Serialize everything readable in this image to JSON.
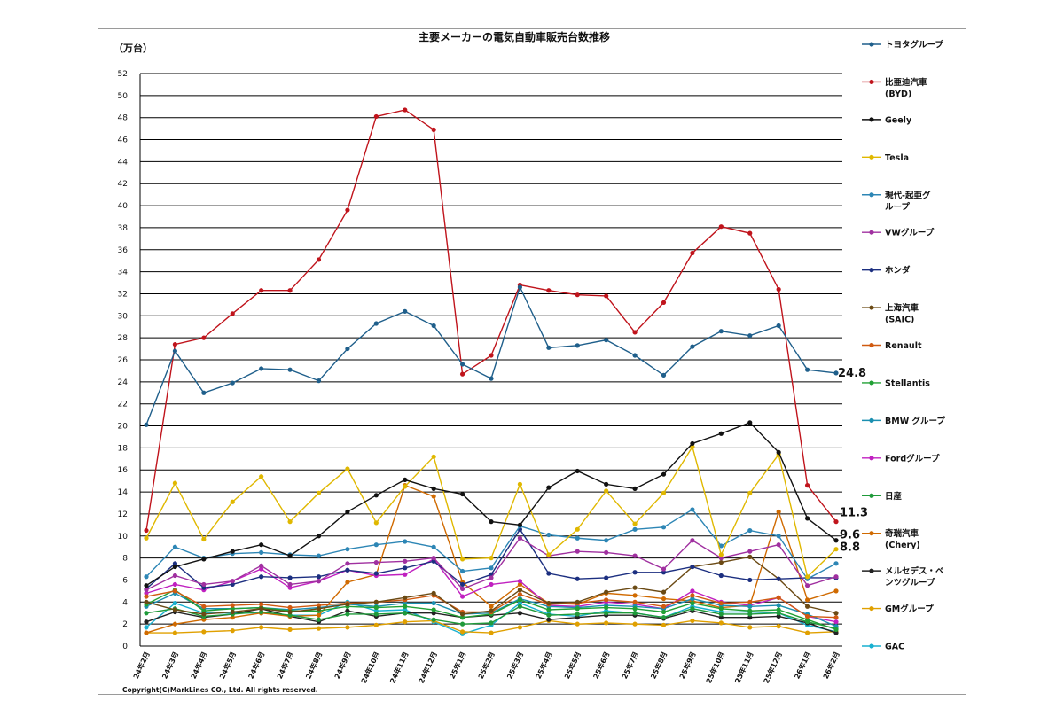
{
  "chart_data": {
    "type": "line",
    "title": "主要メーカーの電気自動車販売台数推移",
    "unit_label": "（万台）",
    "ylim": [
      0,
      52
    ],
    "ytick_step": 2,
    "grid": "horizontal",
    "legend_position": "right",
    "categories": [
      "24年2月",
      "24年3月",
      "24年4月",
      "24年5月",
      "24年6月",
      "24年7月",
      "24年8月",
      "24年9月",
      "24年10月",
      "24年11月",
      "24年12月",
      "25年1月",
      "25年2月",
      "25年3月",
      "25年4月",
      "25年5月",
      "25年6月",
      "25年7月",
      "25年8月",
      "25年9月",
      "25年10月",
      "25年11月",
      "25年12月",
      "26年1月",
      "26年2月"
    ],
    "series": [
      {
        "name": "トヨタグループ",
        "color": "#1f5f8b",
        "values": [
          20.1,
          26.8,
          23.0,
          23.9,
          25.2,
          25.1,
          24.1,
          27.0,
          29.3,
          30.4,
          29.1,
          25.6,
          24.3,
          32.6,
          27.1,
          27.3,
          27.8,
          26.4,
          24.6,
          27.2,
          28.6,
          28.2,
          29.1,
          25.1,
          24.8
        ]
      },
      {
        "name": "比亜迪汽車\n(BYD)",
        "color": "#c0141c",
        "values": [
          10.5,
          27.4,
          28.0,
          30.2,
          32.3,
          32.3,
          35.1,
          39.6,
          48.1,
          48.7,
          46.9,
          24.7,
          26.4,
          32.8,
          32.3,
          31.9,
          31.8,
          28.5,
          31.2,
          35.7,
          38.1,
          37.5,
          32.4,
          14.6,
          11.3
        ]
      },
      {
        "name": "Geely",
        "color": "#111111",
        "values": [
          5.5,
          7.2,
          7.9,
          8.6,
          9.2,
          8.2,
          10.0,
          12.2,
          13.7,
          15.1,
          14.3,
          13.8,
          11.3,
          11.0,
          14.4,
          15.9,
          14.7,
          14.3,
          15.6,
          18.4,
          19.3,
          20.3,
          17.6,
          11.6,
          9.6
        ]
      },
      {
        "name": "Tesla",
        "color": "#e0b800",
        "values": [
          9.8,
          14.8,
          9.7,
          13.1,
          15.4,
          11.3,
          13.9,
          16.1,
          11.2,
          14.5,
          17.2,
          7.9,
          8.0,
          14.7,
          8.3,
          10.6,
          14.1,
          11.1,
          13.9,
          18.1,
          8.3,
          13.9,
          17.4,
          6.3,
          8.8
        ]
      },
      {
        "name": "現代-起亜グ\nループ",
        "color": "#2d86b5",
        "values": [
          6.3,
          9.0,
          8.0,
          8.4,
          8.5,
          8.3,
          8.2,
          8.8,
          9.2,
          9.5,
          9.0,
          6.8,
          7.1,
          10.9,
          10.1,
          9.8,
          9.6,
          10.6,
          10.8,
          12.4,
          9.1,
          10.5,
          10.0,
          6.1,
          7.5
        ]
      },
      {
        "name": "VWグループ",
        "color": "#a030a0",
        "values": [
          5.1,
          6.4,
          5.6,
          5.9,
          7.3,
          5.6,
          5.9,
          7.5,
          7.6,
          7.7,
          8.0,
          5.2,
          6.2,
          9.8,
          8.2,
          8.6,
          8.5,
          8.2,
          7.0,
          9.6,
          8.0,
          8.6,
          9.2,
          5.5,
          6.3
        ]
      },
      {
        "name": "ホンダ",
        "color": "#1c2f80",
        "values": [
          5.2,
          7.5,
          5.3,
          5.6,
          6.3,
          6.2,
          6.3,
          6.9,
          6.6,
          7.1,
          7.7,
          5.6,
          6.5,
          10.6,
          6.6,
          6.1,
          6.2,
          6.7,
          6.7,
          7.2,
          6.4,
          6.0,
          6.1,
          6.2,
          6.2
        ]
      },
      {
        "name": "上海汽車\n(SAIC)",
        "color": "#6b4a14",
        "values": [
          4.0,
          3.3,
          2.9,
          3.1,
          3.4,
          3.1,
          3.4,
          3.8,
          4.0,
          4.4,
          4.8,
          2.9,
          3.2,
          5.1,
          3.9,
          4.0,
          4.9,
          5.3,
          4.9,
          7.2,
          7.6,
          8.1,
          6.1,
          3.6,
          3.0
        ]
      },
      {
        "name": "Renault",
        "color": "#d05a10",
        "values": [
          4.5,
          5.0,
          3.6,
          3.7,
          3.8,
          3.5,
          3.7,
          3.9,
          4.0,
          4.2,
          4.6,
          3.1,
          3.1,
          4.7,
          3.8,
          3.9,
          4.2,
          4.0,
          3.6,
          4.6,
          3.9,
          4.0,
          4.4,
          2.7,
          2.6
        ]
      },
      {
        "name": "Stellantis",
        "color": "#21a035",
        "values": [
          3.8,
          5.1,
          3.2,
          3.4,
          3.5,
          3.2,
          3.2,
          3.6,
          3.5,
          3.6,
          3.3,
          2.6,
          2.9,
          4.2,
          3.3,
          3.4,
          3.5,
          3.4,
          3.1,
          3.9,
          3.4,
          3.2,
          3.3,
          2.4,
          1.5
        ]
      },
      {
        "name": "BMW グループ",
        "color": "#1a8fb0",
        "values": [
          3.6,
          4.8,
          3.4,
          3.4,
          3.5,
          3.3,
          3.5,
          3.8,
          3.6,
          3.9,
          3.9,
          2.9,
          3.0,
          4.3,
          3.6,
          3.5,
          3.7,
          3.6,
          3.4,
          4.3,
          3.7,
          3.6,
          3.7,
          2.9,
          1.8
        ]
      },
      {
        "name": "Fordグループ",
        "color": "#c020c0",
        "values": [
          4.8,
          5.6,
          5.1,
          5.9,
          7.0,
          5.3,
          5.9,
          6.9,
          6.4,
          6.5,
          7.9,
          4.5,
          5.6,
          5.9,
          3.7,
          3.6,
          4.0,
          3.8,
          3.4,
          5.0,
          4.0,
          3.7,
          4.4,
          2.7,
          2.2
        ]
      },
      {
        "name": "日産",
        "color": "#1f9a3a",
        "values": [
          3.0,
          3.4,
          2.7,
          2.9,
          3.1,
          2.8,
          2.4,
          2.9,
          2.9,
          3.0,
          2.4,
          2.0,
          2.1,
          3.6,
          2.8,
          2.9,
          3.0,
          3.0,
          2.6,
          3.4,
          2.9,
          2.9,
          3.0,
          2.2,
          1.6
        ]
      },
      {
        "name": "奇瑞汽車\n(Chery)",
        "color": "#d06a00",
        "values": [
          1.2,
          2.0,
          2.4,
          2.6,
          3.0,
          2.7,
          2.8,
          5.8,
          6.5,
          14.6,
          13.6,
          5.8,
          3.6,
          5.6,
          3.9,
          3.8,
          4.8,
          4.6,
          4.3,
          4.1,
          3.5,
          3.7,
          12.2,
          4.2,
          5.0
        ]
      },
      {
        "name": "メルセデス・ベ\nンツグループ",
        "color": "#222222",
        "values": [
          2.2,
          3.1,
          2.6,
          2.9,
          3.4,
          2.7,
          2.2,
          3.2,
          2.7,
          3.0,
          3.0,
          2.6,
          2.8,
          3.0,
          2.4,
          2.6,
          2.8,
          2.8,
          2.5,
          3.2,
          2.6,
          2.6,
          2.7,
          2.1,
          1.2
        ]
      },
      {
        "name": "GMグループ",
        "color": "#e0a000",
        "values": [
          1.2,
          1.2,
          1.3,
          1.4,
          1.7,
          1.5,
          1.6,
          1.7,
          1.9,
          2.2,
          2.3,
          1.3,
          1.2,
          1.7,
          2.3,
          2.0,
          2.1,
          2.0,
          1.9,
          2.3,
          2.1,
          1.7,
          1.8,
          1.2,
          1.3
        ]
      },
      {
        "name": "GAC",
        "color": "#18b0d0",
        "values": [
          1.7,
          3.9,
          3.0,
          3.0,
          3.0,
          2.8,
          2.8,
          4.0,
          3.2,
          3.3,
          2.2,
          1.1,
          1.9,
          3.9,
          2.9,
          2.7,
          3.2,
          3.0,
          2.6,
          3.6,
          3.1,
          3.1,
          3.0,
          1.9,
          1.3
        ]
      }
    ],
    "end_labels": [
      {
        "text": "24.8",
        "series": 0
      },
      {
        "text": "11.3",
        "series": 1
      },
      {
        "text": "9.6",
        "series": 2
      },
      {
        "text": "8.8",
        "series": 3
      }
    ],
    "copyright": "Copyright(C)MarkLines CO., Ltd. All rights reserved."
  }
}
